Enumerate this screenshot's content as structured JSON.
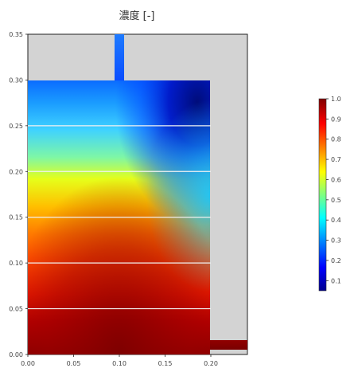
{
  "chart_data": {
    "type": "heatmap",
    "title": "濃度 [-]",
    "xlabel": "",
    "ylabel": "",
    "xlim": [
      0,
      0.24
    ],
    "ylim": [
      0,
      0.35
    ],
    "x_ticks": [
      "0.00",
      "0.05",
      "0.10",
      "0.15",
      "0.20"
    ],
    "y_ticks": [
      "0.00",
      "0.05",
      "0.10",
      "0.15",
      "0.20",
      "0.25",
      "0.30",
      "0.35"
    ],
    "colorbar": {
      "range": [
        0.05,
        1.0
      ],
      "ticks": [
        "0.1",
        "0.2",
        "0.3",
        "0.4",
        "0.5",
        "0.6",
        "0.7",
        "0.8",
        "0.9",
        "1.0"
      ],
      "colormap": "jet"
    },
    "geometry": {
      "domain_width": 0.2,
      "domain_height": 0.3,
      "inlet": {
        "x": [
          0.095,
          0.105
        ],
        "y": [
          0.3,
          0.35
        ]
      },
      "outlet": {
        "x": [
          0.2,
          0.24
        ],
        "y": [
          0.005,
          0.015
        ]
      },
      "internal_lines_y": [
        0.05,
        0.1,
        0.15,
        0.2,
        0.25
      ]
    },
    "concentration_profile_center": [
      {
        "y": 0.0,
        "value": 0.98
      },
      {
        "y": 0.05,
        "value": 0.93
      },
      {
        "y": 0.1,
        "value": 0.86
      },
      {
        "y": 0.15,
        "value": 0.75
      },
      {
        "y": 0.2,
        "value": 0.6
      },
      {
        "y": 0.25,
        "value": 0.42
      },
      {
        "y": 0.3,
        "value": 0.28
      }
    ],
    "notes_colors": {
      "background": "#d3d3d3",
      "gridline": "#f2f2f2"
    }
  }
}
